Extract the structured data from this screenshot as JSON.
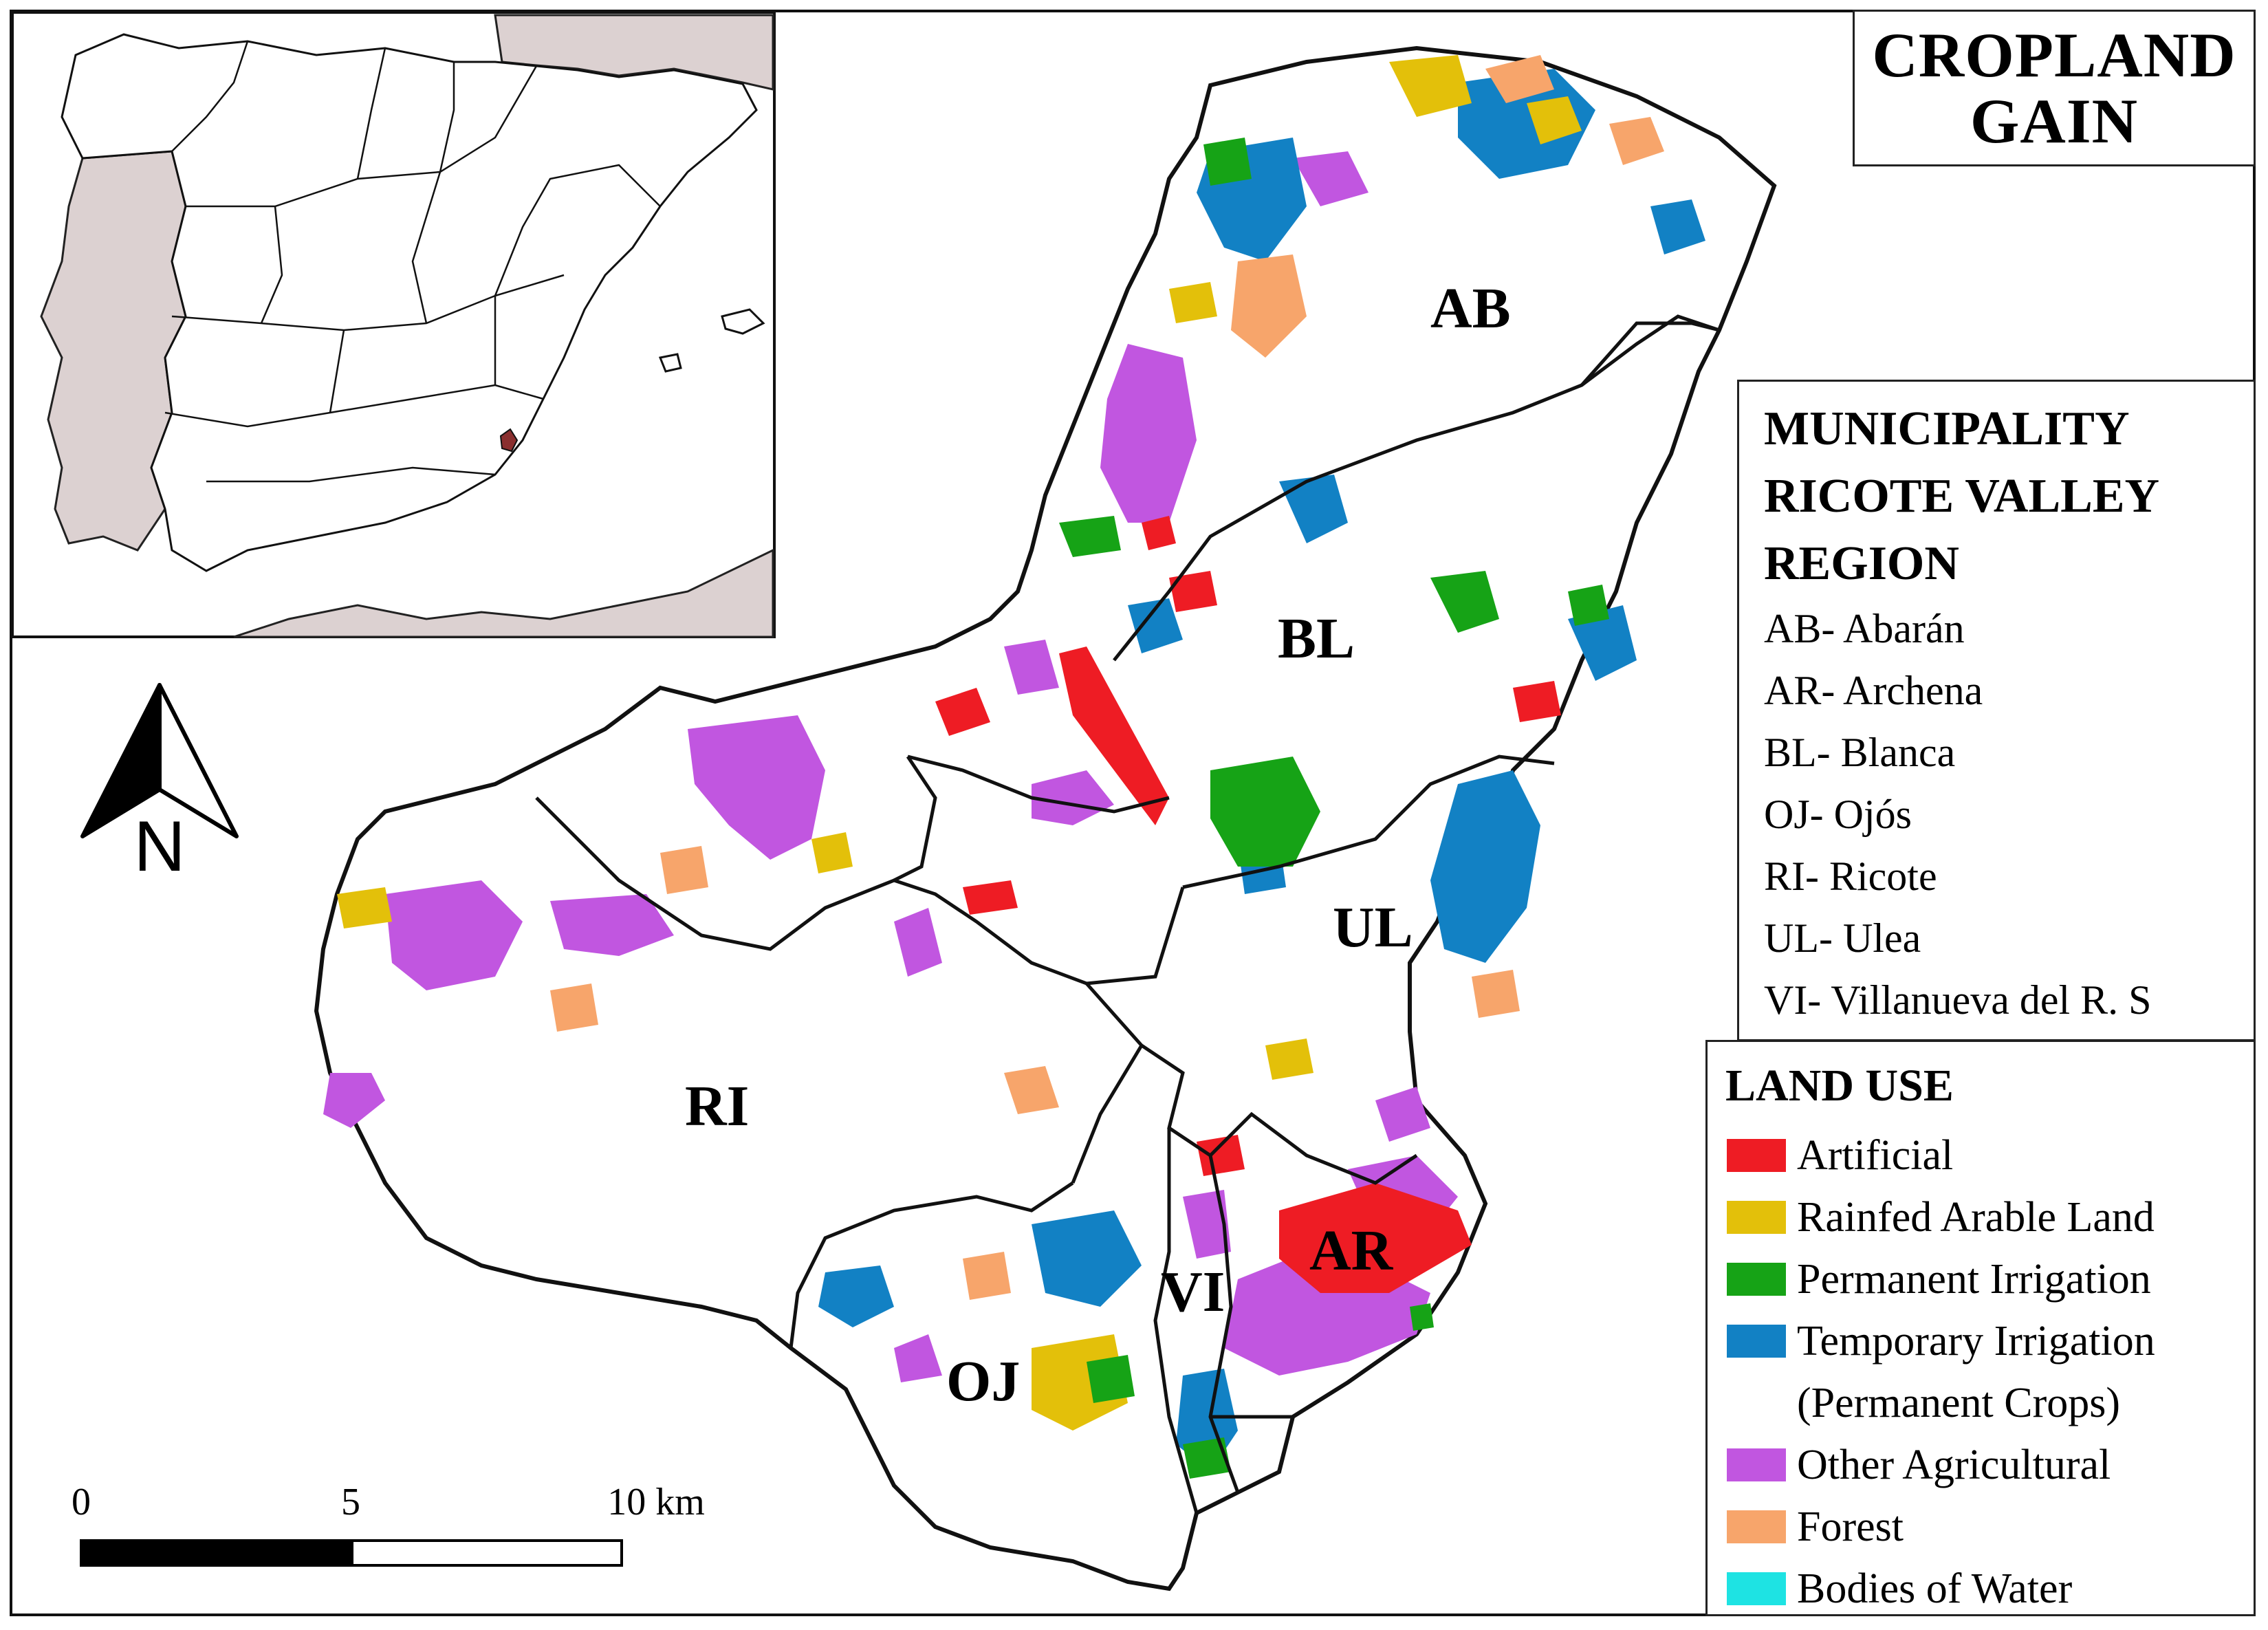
{
  "title": {
    "line1": "CROPLAND",
    "line2": "GAIN"
  },
  "municipality_legend": {
    "heading_lines": [
      "MUNICIPALITY",
      "RICOTE VALLEY",
      "REGION"
    ],
    "items": [
      "AB- Abarán",
      "AR- Archena",
      "BL- Blanca",
      "OJ- Ojós",
      "RI- Ricote",
      "UL- Ulea",
      "VI- Villanueva del R. S"
    ]
  },
  "land_use_legend": {
    "title": "LAND USE",
    "items": [
      {
        "label": "Artificial",
        "color": "#ee1c24"
      },
      {
        "label": "Rainfed Arable Land",
        "color": "#e3c00a"
      },
      {
        "label": "Permanent Irrigation",
        "color": "#16a316"
      },
      {
        "label": "Temporary Irrigation",
        "label2": "(Permanent Crops)",
        "color": "#1281c4"
      },
      {
        "label": "Other Agricultural",
        "color": "#c156e0"
      },
      {
        "label": "Forest",
        "color": "#f7a56b"
      },
      {
        "label": "Bodies of Water",
        "color": "#1ee3e3"
      }
    ]
  },
  "municipality_labels": {
    "AB": "AB",
    "BL": "BL",
    "UL": "UL",
    "RI": "RI",
    "OJ": "OJ",
    "VI": "VI",
    "AR": "AR"
  },
  "north_arrow": {
    "letter": "N"
  },
  "scale_bar": {
    "labels": [
      "0",
      "5",
      "10 km"
    ]
  },
  "colors": {
    "inset_land_other_country": "#dcd1d1",
    "outline": "#111111"
  }
}
